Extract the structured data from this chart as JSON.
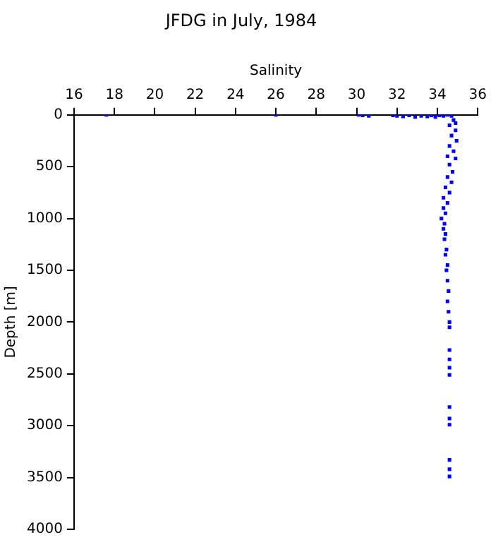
{
  "chart_data": {
    "type": "scatter",
    "title": "JFDG in July, 1984",
    "xlabel": "Salinity",
    "ylabel": "Depth [m]",
    "x": [
      17.6,
      26.0,
      30.1,
      30.3,
      30.6,
      31.8,
      32.0,
      32.3,
      32.6,
      32.9,
      33.2,
      33.5,
      33.7,
      33.9,
      34.1,
      34.3,
      34.5,
      34.7,
      34.8,
      34.9,
      34.6,
      34.9,
      34.7,
      34.95,
      34.6,
      34.8,
      34.5,
      34.9,
      34.6,
      34.75,
      34.5,
      34.7,
      34.4,
      34.6,
      34.3,
      34.5,
      34.3,
      34.4,
      34.2,
      34.35,
      34.3,
      34.4,
      34.35,
      34.45,
      34.4,
      34.5,
      34.45,
      34.5,
      34.55,
      34.5,
      34.55,
      34.6,
      34.6,
      34.6,
      34.6,
      34.6,
      34.6,
      34.6,
      34.6,
      34.6,
      34.6,
      34.6,
      34.6
    ],
    "series": [
      {
        "color": "#0000ff",
        "values": [
          0,
          0,
          0,
          5,
          10,
          5,
          10,
          15,
          5,
          20,
          10,
          15,
          5,
          20,
          5,
          10,
          0,
          10,
          50,
          80,
          100,
          150,
          200,
          250,
          300,
          350,
          400,
          420,
          480,
          550,
          600,
          650,
          700,
          750,
          800,
          850,
          900,
          950,
          1000,
          1050,
          1100,
          1150,
          1200,
          1300,
          1350,
          1450,
          1500,
          1600,
          1700,
          1800,
          1900,
          2000,
          2050,
          2270,
          2360,
          2440,
          2510,
          2820,
          2930,
          2990,
          3330,
          3420,
          3490
        ]
      }
    ],
    "xlim": [
      16,
      36
    ],
    "xticks": [
      16,
      18,
      20,
      22,
      24,
      26,
      28,
      30,
      32,
      34,
      36
    ],
    "ylim": [
      4000,
      0
    ],
    "yticks": [
      0,
      500,
      1000,
      1500,
      2000,
      2500,
      3000,
      3500,
      4000
    ],
    "grid": false,
    "legend": false,
    "marker": "square"
  }
}
